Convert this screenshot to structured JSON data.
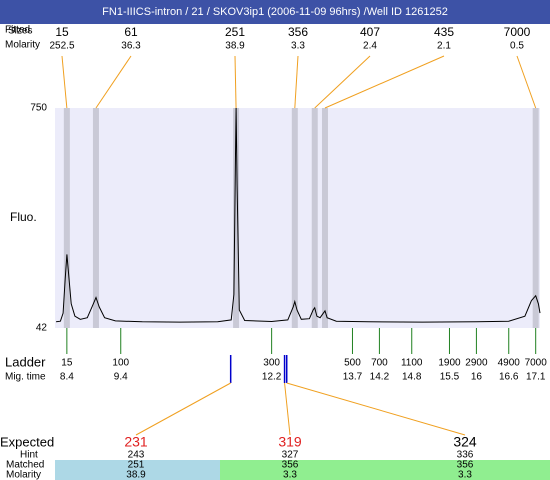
{
  "chart_data": {
    "type": "line",
    "title": "FN1-IIICS-intron / 21 / SKOV3ip1 (2006-11-09 96hrs) /Well ID 1261252",
    "row_labels": {
      "fitted": "Fitted",
      "sizes": "Sizes",
      "molarity": "Molarity",
      "ylabel": "Fluo.",
      "ladder": "Ladder",
      "mig_time": "Mig. time",
      "expected": "Expected",
      "hint": "Hint",
      "matched": "Matched",
      "matched_molarity": "Molarity"
    },
    "xlim": [
      8.18,
      17.18
    ],
    "ylim": [
      42,
      750
    ],
    "yticks": [
      42,
      750
    ],
    "plot_color": "#ececfa",
    "line_color": "#000000",
    "band_color": "#c9c9d6",
    "connector_color": "#f0a020",
    "ladder_color": "#208020",
    "marker_color": "#0000cc",
    "x": [
      8.2,
      8.28,
      8.33,
      8.37,
      8.4,
      8.43,
      8.48,
      8.55,
      8.65,
      8.78,
      8.88,
      8.94,
      9.0,
      9.1,
      9.3,
      9.8,
      10.5,
      11.2,
      11.45,
      11.5,
      11.53,
      11.54,
      11.56,
      11.6,
      11.7,
      12.2,
      12.5,
      12.6,
      12.63,
      12.67,
      12.75,
      12.9,
      12.97,
      13.0,
      13.04,
      13.1,
      13.16,
      13.19,
      13.23,
      13.4,
      14.0,
      15.0,
      16.0,
      16.6,
      16.9,
      17.02,
      17.1,
      17.15,
      17.18
    ],
    "values": [
      62,
      64,
      90,
      200,
      279,
      220,
      120,
      80,
      70,
      75,
      115,
      140,
      110,
      75,
      65,
      62,
      61,
      62,
      68,
      150,
      600,
      750,
      500,
      100,
      66,
      63,
      68,
      110,
      127,
      100,
      70,
      72,
      100,
      107,
      80,
      75,
      90,
      97,
      75,
      64,
      62,
      61,
      62,
      64,
      80,
      130,
      146,
      120,
      90
    ],
    "peaks": {
      "sizes": [
        15,
        61,
        251,
        356,
        407,
        435,
        7000
      ],
      "molarity": [
        252.5,
        36.3,
        38.9,
        3.3,
        2.4,
        2.1,
        0.5
      ],
      "times": [
        8.4,
        8.94,
        11.54,
        12.63,
        13.0,
        13.19,
        17.1
      ]
    },
    "ladder": {
      "sizes": [
        15,
        100,
        300,
        500,
        700,
        1100,
        1900,
        2900,
        4900,
        7000
      ],
      "times": [
        8.4,
        9.4,
        12.2,
        13.7,
        14.2,
        14.8,
        15.5,
        16,
        16.6,
        17.1
      ]
    },
    "expected": [
      {
        "expected": 231,
        "color": "#e02020",
        "hint": 243,
        "matched": 251,
        "molarity": 38.9,
        "time": 11.44,
        "match_color": "#add8e6"
      },
      {
        "expected": 319,
        "color": "#e02020",
        "hint": 327,
        "matched": 356,
        "molarity": 3.3,
        "time": 12.44,
        "match_color": "#90ee90"
      },
      {
        "expected": 324,
        "color": "#000000",
        "hint": 336,
        "matched": 356,
        "molarity": 3.3,
        "time": 12.48,
        "match_color": "#90ee90"
      }
    ]
  }
}
